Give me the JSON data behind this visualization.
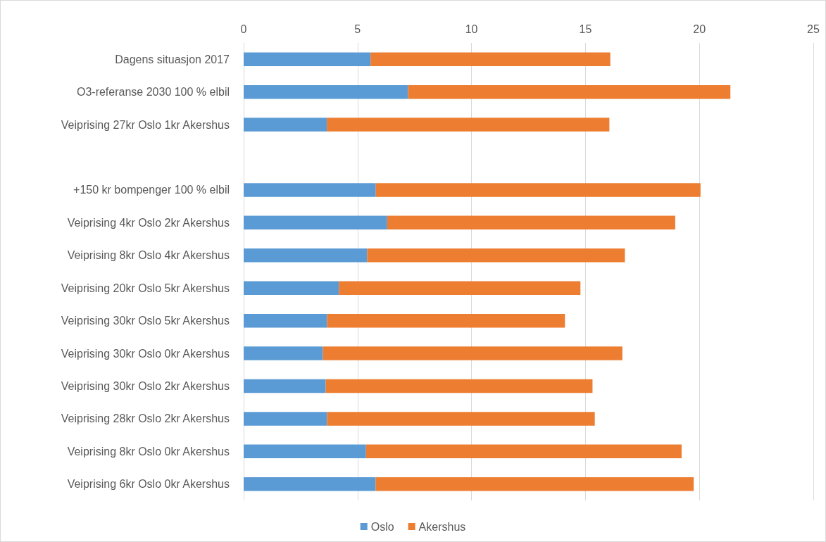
{
  "chart_data": {
    "type": "bar",
    "orientation": "horizontal",
    "stacked": true,
    "categories": [
      "Dagens situasjon 2017",
      "O3-referanse 2030 100 % elbil",
      "Veiprising 27kr Oslo 1kr Akershus",
      null,
      "+150 kr bompenger 100 % elbil",
      "Veiprising 4kr Oslo 2kr Akershus",
      "Veiprising 8kr Oslo 4kr Akershus",
      "Veiprising 20kr Oslo 5kr Akershus",
      "Veiprising 30kr Oslo 5kr Akershus",
      "Veiprising 30kr Oslo 0kr Akershus",
      "Veiprising 30kr Oslo 2kr Akershus",
      "Veiprising 28kr Oslo 2kr Akershus",
      "Veiprising 8kr Oslo 0kr Akershus",
      "Veiprising 6kr Oslo 0kr Akershus"
    ],
    "series": [
      {
        "name": "Oslo",
        "color": "#5b9bd5",
        "values": [
          5.57,
          7.21,
          3.65,
          null,
          5.8,
          6.3,
          5.42,
          4.18,
          3.66,
          3.48,
          3.6,
          3.66,
          5.37,
          5.79
        ]
      },
      {
        "name": "Akershus",
        "color": "#ed7d31",
        "values": [
          10.52,
          14.15,
          12.4,
          null,
          14.25,
          12.64,
          11.31,
          10.6,
          10.44,
          13.14,
          11.71,
          11.75,
          13.85,
          13.96
        ]
      }
    ],
    "xlim": [
      0,
      25
    ],
    "xticks": [
      0,
      5,
      10,
      15,
      20,
      25
    ],
    "grid": "x",
    "legend": "bottom"
  }
}
